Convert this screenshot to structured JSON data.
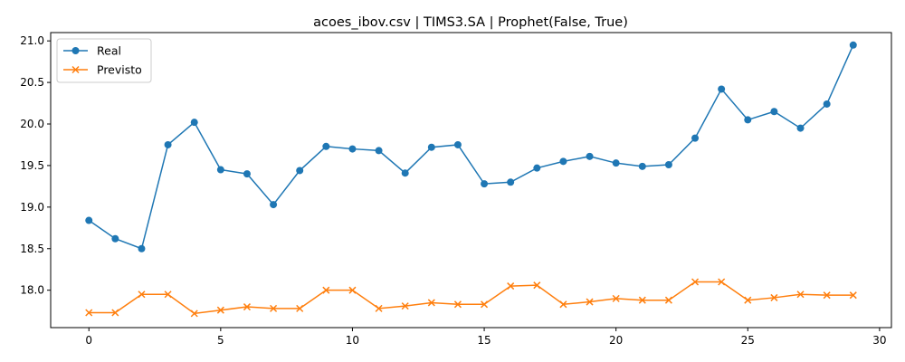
{
  "chart_data": {
    "type": "line",
    "title": "acoes_ibov.csv | TIMS3.SA | Prophet(False, True)",
    "xlabel": "",
    "ylabel": "",
    "xlim": [
      -1.45,
      30.45
    ],
    "ylim": [
      17.55,
      21.1
    ],
    "xticks": [
      0,
      5,
      10,
      15,
      20,
      25,
      30
    ],
    "yticks": [
      18.0,
      18.5,
      19.0,
      19.5,
      20.0,
      20.5,
      21.0
    ],
    "ytick_labels": [
      "18.0",
      "18.5",
      "19.0",
      "19.5",
      "20.0",
      "20.5",
      "21.0"
    ],
    "grid": false,
    "legend_position": "top-left",
    "x": [
      0,
      1,
      2,
      3,
      4,
      5,
      6,
      7,
      8,
      9,
      10,
      11,
      12,
      13,
      14,
      15,
      16,
      17,
      18,
      19,
      20,
      21,
      22,
      23,
      24,
      25,
      26,
      27,
      28,
      29
    ],
    "series": [
      {
        "name": "Real",
        "color": "#1f77b4",
        "marker": "circle",
        "values": [
          18.84,
          18.62,
          18.5,
          19.75,
          20.02,
          19.45,
          19.4,
          19.03,
          19.44,
          19.73,
          19.7,
          19.68,
          19.41,
          19.72,
          19.75,
          19.28,
          19.3,
          19.47,
          19.55,
          19.61,
          19.53,
          19.49,
          19.51,
          19.83,
          20.42,
          20.05,
          20.15,
          19.95,
          20.24,
          20.95
        ]
      },
      {
        "name": "Previsto",
        "color": "#ff7f0e",
        "marker": "x",
        "values": [
          17.73,
          17.73,
          17.95,
          17.95,
          17.72,
          17.76,
          17.8,
          17.78,
          17.78,
          18.0,
          18.0,
          17.78,
          17.81,
          17.85,
          17.83,
          17.83,
          18.05,
          18.06,
          17.83,
          17.86,
          17.9,
          17.88,
          17.88,
          18.1,
          18.1,
          17.88,
          17.91,
          17.95,
          17.94,
          17.94
        ]
      }
    ]
  }
}
